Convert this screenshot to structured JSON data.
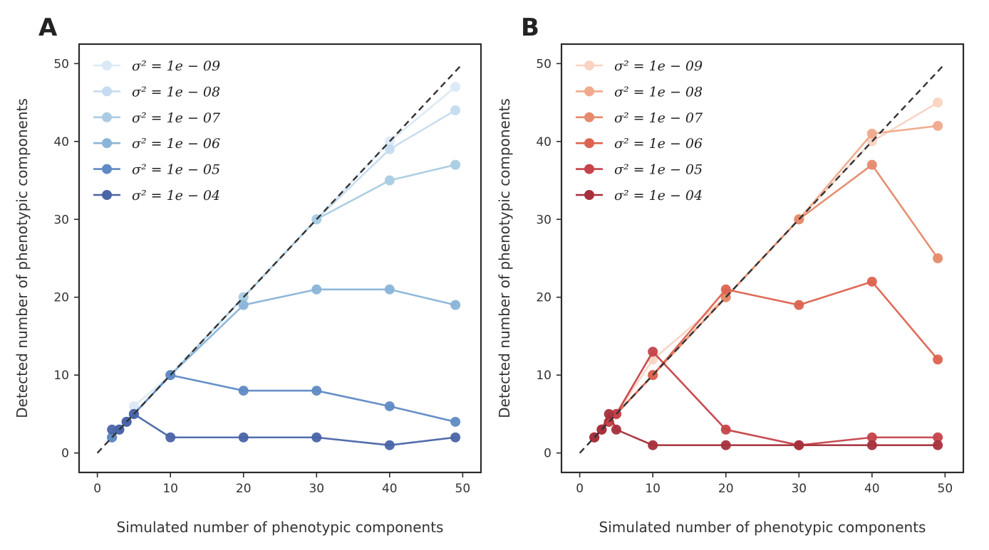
{
  "chart_data": [
    {
      "type": "line",
      "panel_label": "A",
      "xlabel": "Simulated number of phenotypic components",
      "ylabel": "Detected number of phenotypic components",
      "xlim": [
        -2.5,
        52.5
      ],
      "ylim": [
        -2.5,
        52.5
      ],
      "xticks": [
        0,
        10,
        20,
        30,
        40,
        50
      ],
      "yticks": [
        0,
        10,
        20,
        30,
        40,
        50
      ],
      "grid": false,
      "legend_position": "top-left",
      "reference_line": {
        "style": "dashed",
        "color": "#333333",
        "x": [
          0,
          50
        ],
        "y": [
          0,
          50
        ]
      },
      "x": [
        2,
        3,
        4,
        5,
        10,
        20,
        30,
        40,
        49
      ],
      "series": [
        {
          "name": "σ² = 1e − 09",
          "color": "#dbe9f6",
          "values": [
            2,
            3,
            4,
            6,
            10,
            20,
            30,
            40,
            47
          ]
        },
        {
          "name": "σ² = 1e − 08",
          "color": "#c6dbef",
          "values": [
            2,
            3,
            4,
            5,
            10,
            20,
            30,
            39,
            44
          ]
        },
        {
          "name": "σ² = 1e − 07",
          "color": "#a9cce3",
          "values": [
            2,
            3,
            4,
            5,
            10,
            20,
            30,
            35,
            37
          ]
        },
        {
          "name": "σ² = 1e − 06",
          "color": "#8ab4d8",
          "values": [
            2,
            3,
            4,
            5,
            10,
            19,
            21,
            21,
            19
          ]
        },
        {
          "name": "σ² = 1e − 05",
          "color": "#5f8ac4",
          "values": [
            2,
            3,
            4,
            5,
            10,
            8,
            8,
            6,
            4
          ]
        },
        {
          "name": "σ² = 1e − 04",
          "color": "#4a64a8",
          "values": [
            3,
            3,
            4,
            5,
            2,
            2,
            2,
            1,
            2
          ]
        }
      ]
    },
    {
      "type": "line",
      "panel_label": "B",
      "xlabel": "Simulated number of phenotypic components",
      "ylabel": "Detected number of phenotypic components",
      "xlim": [
        -2.5,
        52.5
      ],
      "ylim": [
        -2.5,
        52.5
      ],
      "xticks": [
        0,
        10,
        20,
        30,
        40,
        50
      ],
      "yticks": [
        0,
        10,
        20,
        30,
        40,
        50
      ],
      "grid": false,
      "legend_position": "top-left",
      "reference_line": {
        "style": "dashed",
        "color": "#333333",
        "x": [
          0,
          50
        ],
        "y": [
          0,
          50
        ]
      },
      "x": [
        2,
        3,
        4,
        5,
        10,
        20,
        30,
        40,
        49
      ],
      "series": [
        {
          "name": "σ² = 1e − 09",
          "color": "#f9d4c2",
          "values": [
            2,
            3,
            4,
            5,
            12,
            20,
            30,
            40,
            45
          ]
        },
        {
          "name": "σ² = 1e − 08",
          "color": "#f0a98c",
          "values": [
            2,
            3,
            4,
            5,
            10,
            20,
            30,
            41,
            42
          ]
        },
        {
          "name": "σ² = 1e − 07",
          "color": "#e58a6c",
          "values": [
            2,
            3,
            4,
            5,
            10,
            20,
            30,
            37,
            25
          ]
        },
        {
          "name": "σ² = 1e − 06",
          "color": "#dc6350",
          "values": [
            2,
            3,
            4,
            5,
            10,
            21,
            19,
            22,
            12
          ]
        },
        {
          "name": "σ² = 1e − 05",
          "color": "#c5434a",
          "values": [
            2,
            3,
            4,
            5,
            13,
            3,
            1,
            2,
            2
          ]
        },
        {
          "name": "σ² = 1e − 04",
          "color": "#a5303c",
          "values": [
            2,
            3,
            5,
            3,
            1,
            1,
            1,
            1,
            1
          ]
        }
      ]
    }
  ]
}
